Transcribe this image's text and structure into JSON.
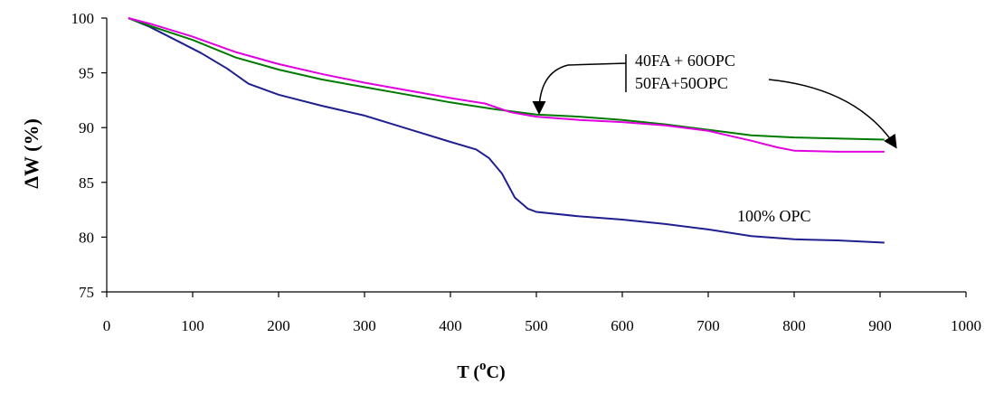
{
  "chart_data": {
    "type": "line",
    "xlabel_main": "T (",
    "xlabel_sup": "o",
    "xlabel_unit": "C)",
    "ylabel": "ΔW (%)",
    "xlim": [
      0,
      1000
    ],
    "ylim": [
      75,
      100
    ],
    "xticks": [
      0,
      100,
      200,
      300,
      400,
      500,
      600,
      700,
      800,
      900,
      1000
    ],
    "yticks": [
      75,
      80,
      85,
      90,
      95,
      100
    ],
    "grid": false,
    "series": [
      {
        "name": "100% OPC",
        "color": "#1f1f8f",
        "x": [
          25,
          50,
          80,
          110,
          140,
          165,
          200,
          250,
          300,
          350,
          400,
          430,
          445,
          460,
          475,
          490,
          500,
          550,
          600,
          650,
          700,
          750,
          800,
          850,
          905
        ],
        "y": [
          100,
          99.2,
          98,
          96.8,
          95.4,
          94,
          93,
          92,
          91.1,
          89.9,
          88.7,
          88,
          87.2,
          85.8,
          83.6,
          82.6,
          82.3,
          81.9,
          81.6,
          81.2,
          80.7,
          80.1,
          79.8,
          79.7,
          79.5
        ]
      },
      {
        "name": "40FA + 60OPC",
        "color": "#007a00",
        "x": [
          25,
          50,
          100,
          150,
          200,
          250,
          300,
          350,
          400,
          450,
          500,
          550,
          600,
          650,
          700,
          750,
          800,
          850,
          905
        ],
        "y": [
          100,
          99.3,
          98,
          96.4,
          95.3,
          94.4,
          93.7,
          93,
          92.3,
          91.7,
          91.2,
          91,
          90.7,
          90.3,
          89.8,
          89.3,
          89.1,
          89,
          88.9
        ]
      },
      {
        "name": "50FA+50OPC",
        "color": "#e000e0",
        "x": [
          25,
          50,
          100,
          150,
          200,
          250,
          300,
          350,
          400,
          440,
          470,
          500,
          550,
          600,
          650,
          700,
          750,
          780,
          800,
          850,
          905
        ],
        "y": [
          100,
          99.5,
          98.3,
          96.9,
          95.8,
          94.9,
          94.1,
          93.4,
          92.7,
          92.2,
          91.4,
          91,
          90.7,
          90.5,
          90.2,
          89.7,
          88.8,
          88.2,
          87.9,
          87.8,
          87.8
        ]
      }
    ],
    "annotations": {
      "label_100opc": "100% OPC",
      "label_40fa": "40FA + 60OPC",
      "label_50fa": "50FA+50OPC"
    }
  }
}
